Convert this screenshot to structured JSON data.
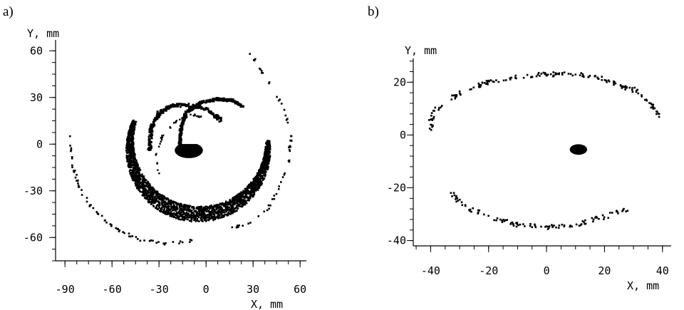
{
  "chart_data": [
    {
      "type": "scatter",
      "panel_label": "a)",
      "xlabel": "X, mm",
      "ylabel": "Y, mm",
      "xlim": [
        -96,
        64
      ],
      "ylim": [
        -75,
        67
      ],
      "xticks": [
        -90,
        -60,
        -30,
        0,
        30,
        60
      ],
      "yticks": [
        -60,
        -30,
        0,
        30,
        60
      ],
      "xminor_step": 7.5,
      "yminor_step": 7.5,
      "grid": false,
      "color": "#000000",
      "features": {
        "central_spot": {
          "center": [
            -11,
            -4
          ],
          "rx": 9,
          "ry": 5
        },
        "main_crescent": {
          "center": [
            -5,
            -4
          ],
          "inner_radius": 36,
          "outer_radius": 46,
          "arc_start_deg": -8,
          "arc_end_deg": 205
        },
        "outer_spiral_left": {
          "points": [
            [
              -87,
              6
            ],
            [
              -86,
              -10
            ],
            [
              -81,
              -28
            ],
            [
              -72,
              -42
            ],
            [
              -60,
              -53
            ],
            [
              -44,
              -61
            ],
            [
              -25,
              -64
            ],
            [
              -8,
              -62
            ]
          ]
        },
        "outer_spiral_right": {
          "points": [
            [
              27,
              59
            ],
            [
              35,
              48
            ],
            [
              43,
              36
            ],
            [
              50,
              22
            ],
            [
              54,
              6
            ],
            [
              53,
              -12
            ],
            [
              47,
              -28
            ],
            [
              39,
              -42
            ],
            [
              28,
              -50
            ],
            [
              15,
              -55
            ]
          ]
        },
        "inner_arc_1": {
          "points": [
            [
              -36,
              -4
            ],
            [
              -35,
              10
            ],
            [
              -30,
              20
            ],
            [
              -21,
              25
            ],
            [
              -10,
              25
            ],
            [
              1,
              22
            ],
            [
              10,
              15
            ]
          ]
        },
        "inner_arc_2": {
          "points": [
            [
              -17,
              -4
            ],
            [
              -16,
              10
            ],
            [
              -13,
              20
            ],
            [
              -3,
              27
            ],
            [
              8,
              29
            ],
            [
              17,
              28
            ],
            [
              24,
              24
            ]
          ]
        },
        "inner_arc_3": {
          "points": [
            [
              -30,
              -20
            ],
            [
              -32,
              -8
            ],
            [
              -28,
              5
            ],
            [
              -19,
              15
            ],
            [
              -9,
              19
            ],
            [
              -1,
              17
            ]
          ]
        }
      }
    },
    {
      "type": "scatter",
      "panel_label": "b)",
      "xlabel": "X, mm",
      "ylabel": "Y, mm",
      "xlim": [
        -46,
        43
      ],
      "ylim": [
        -42,
        29
      ],
      "xticks": [
        -40,
        -20,
        0,
        20,
        40
      ],
      "yticks": [
        -40,
        -20,
        0,
        20
      ],
      "xminor_step": 5,
      "yminor_step": 4,
      "grid": false,
      "color": "#000000",
      "features": {
        "central_spot": {
          "center": [
            11,
            -5.5
          ],
          "rx": 3,
          "ry": 2
        },
        "upper_arc": {
          "points": [
            [
              -40,
              2
            ],
            [
              -39.5,
              8
            ],
            [
              -35,
              12
            ],
            [
              -30,
              16
            ],
            [
              -20,
              20
            ],
            [
              -10,
              22
            ],
            [
              0,
              23
            ],
            [
              10,
              23
            ],
            [
              20,
              21
            ],
            [
              30,
              17
            ],
            [
              35,
              13
            ],
            [
              39,
              7
            ]
          ]
        },
        "lower_arc": {
          "points": [
            [
              -33,
              -22
            ],
            [
              -30,
              -26
            ],
            [
              -20,
              -31
            ],
            [
              -10,
              -34
            ],
            [
              0,
              -35
            ],
            [
              10,
              -34
            ],
            [
              20,
              -31
            ],
            [
              28,
              -28
            ]
          ]
        }
      }
    }
  ]
}
